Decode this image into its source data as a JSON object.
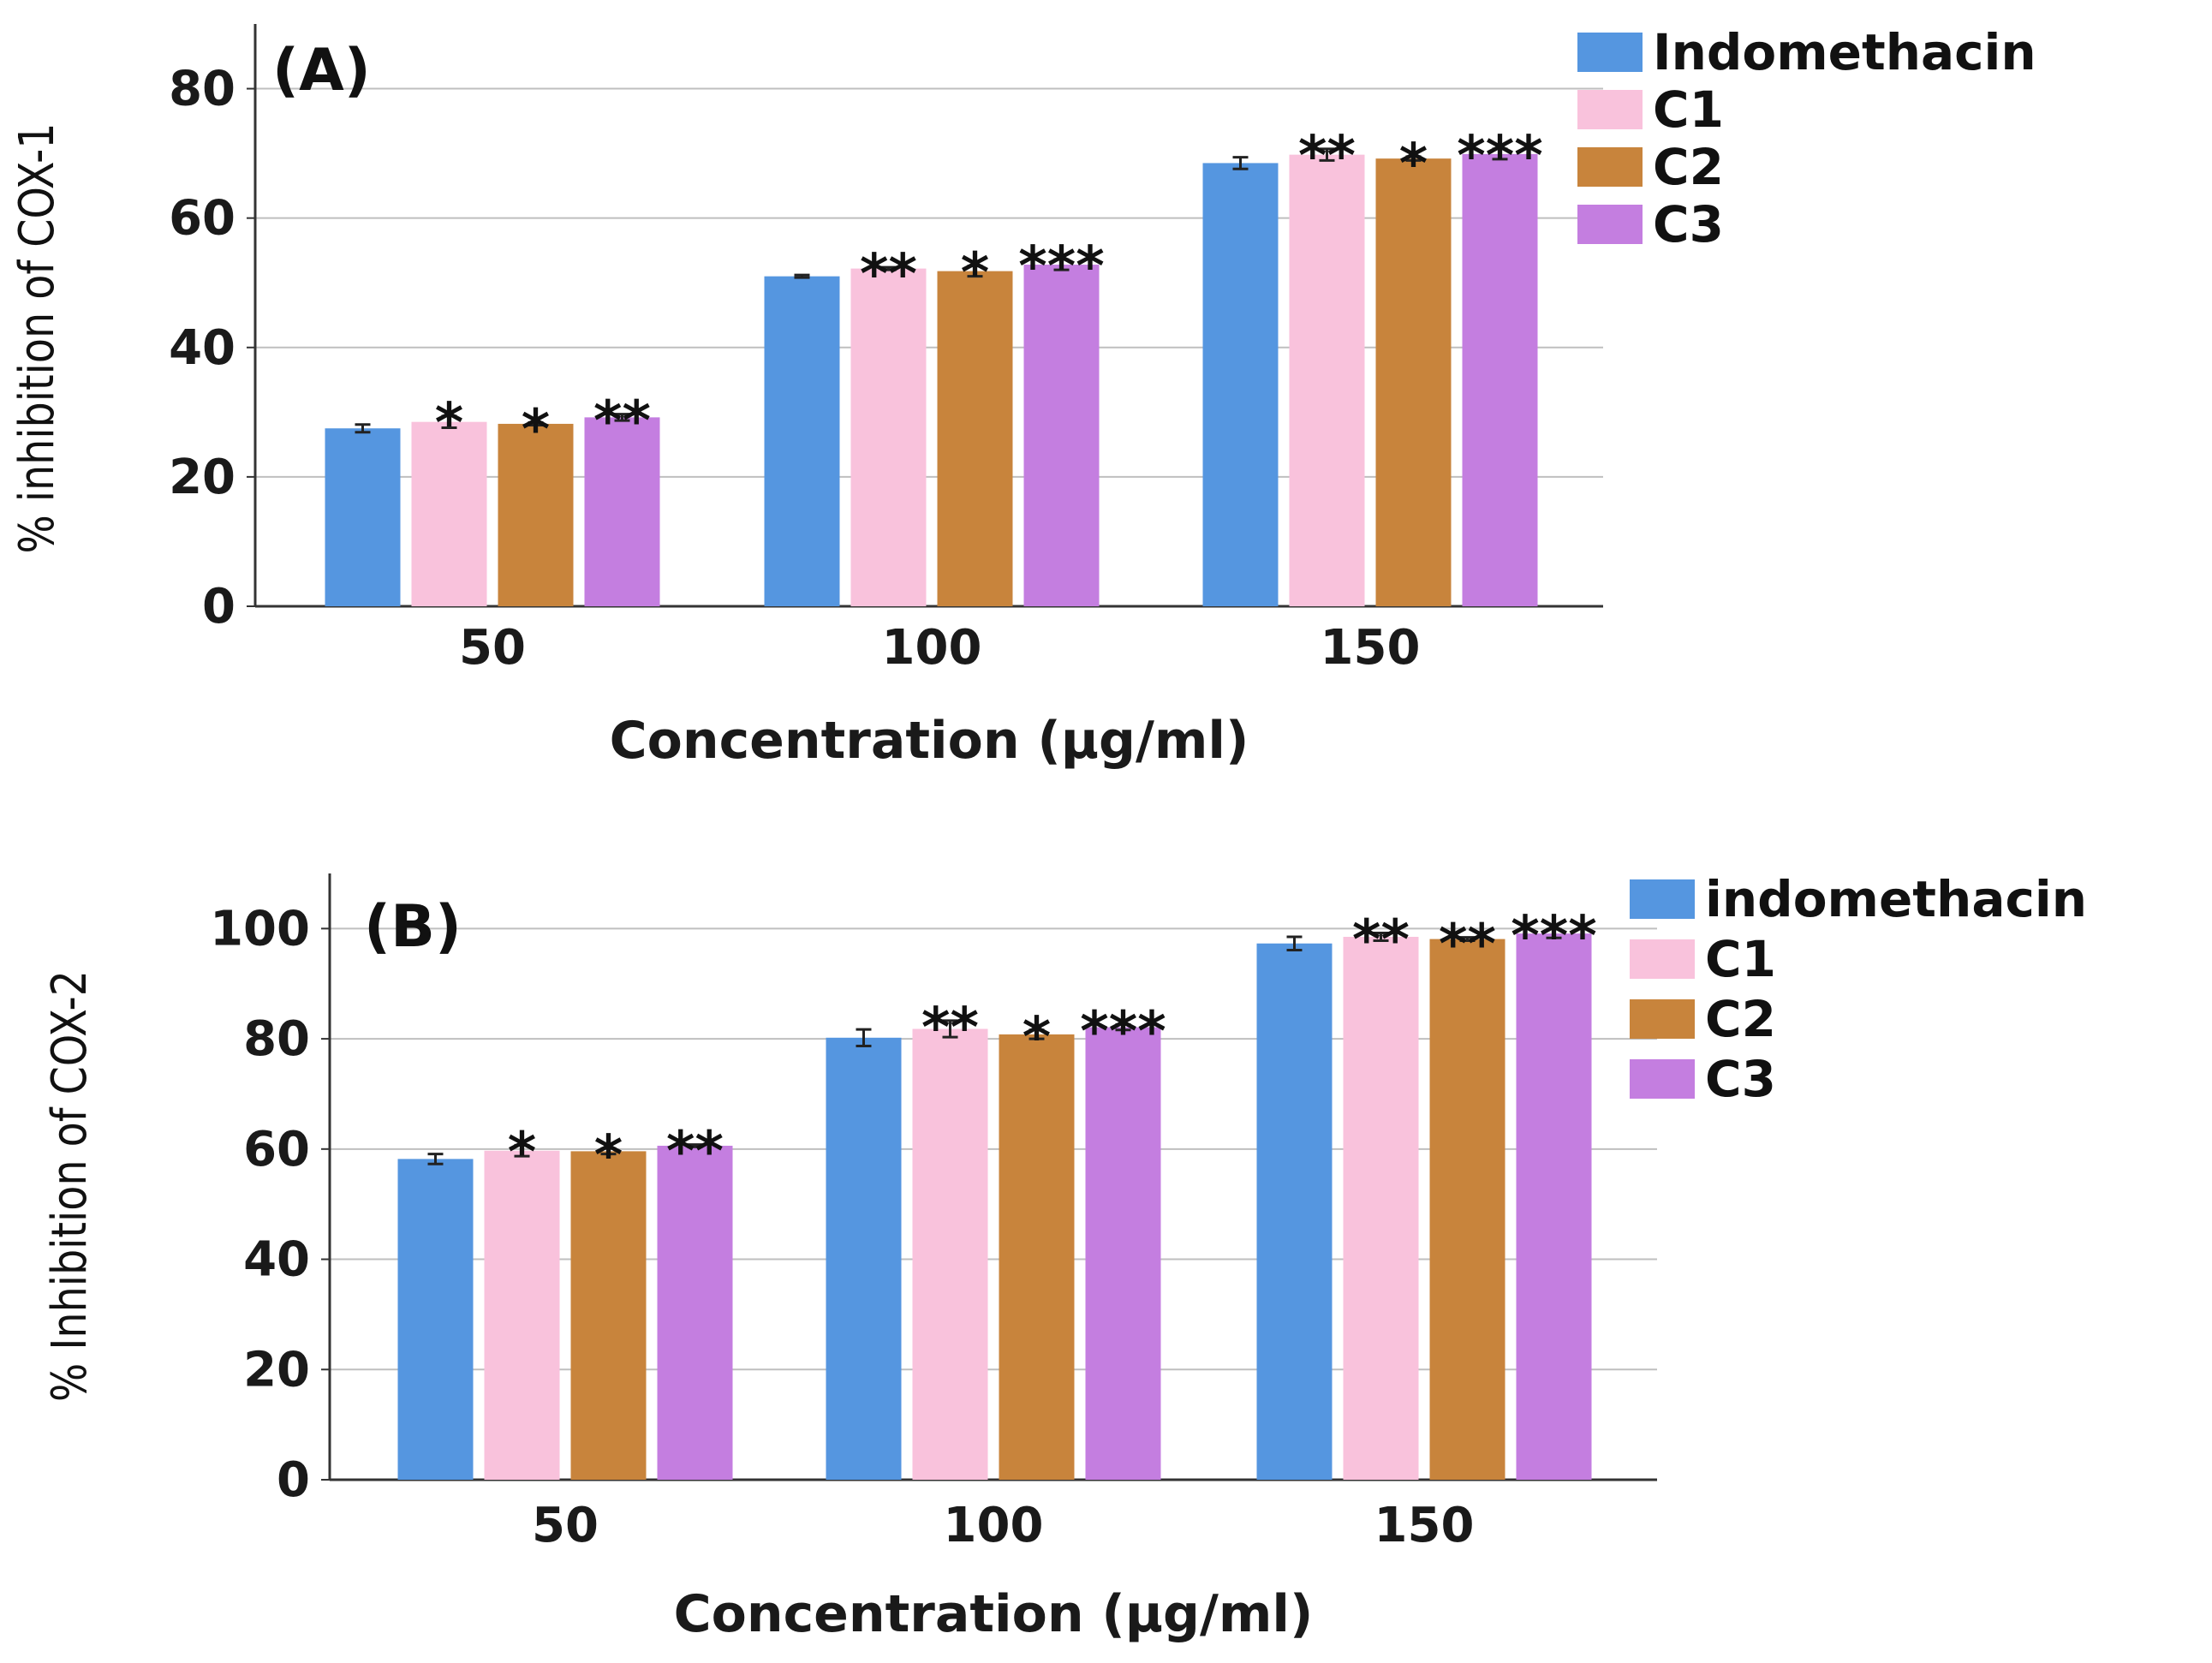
{
  "chart_data": [
    {
      "type": "bar",
      "panel_label": "(A)",
      "categories": [
        "50",
        "100",
        "150"
      ],
      "series": [
        {
          "name": "Indomethacin",
          "color": "#5596e0",
          "values": [
            27.5,
            51.0,
            68.5
          ],
          "errors": [
            0.6,
            0.2,
            0.9
          ],
          "significance": [
            "",
            "",
            ""
          ]
        },
        {
          "name": "C1",
          "color": "#f9c2dc",
          "values": [
            28.5,
            52.2,
            69.8
          ],
          "errors": [
            0.9,
            0.2,
            0.9
          ],
          "significance": [
            "*",
            "**",
            "**"
          ]
        },
        {
          "name": "C2",
          "color": "#c8843c",
          "values": [
            28.2,
            51.8,
            69.2
          ],
          "errors": [
            0.2,
            0.8,
            0.3
          ],
          "significance": [
            "*",
            "*",
            "*"
          ]
        },
        {
          "name": "C3",
          "color": "#c47ee0",
          "values": [
            29.2,
            52.8,
            69.9
          ],
          "errors": [
            0.5,
            0.8,
            0.8
          ],
          "significance": [
            "**",
            "***",
            "***"
          ]
        }
      ],
      "title": "",
      "xlabel": "Concentration (μg/ml)",
      "ylabel": "% inhibition of COX-1",
      "yticks": [
        "0",
        "20",
        "40",
        "60",
        "80"
      ],
      "ylim": [
        0,
        90
      ],
      "grid": true,
      "legend_position": "top-right"
    },
    {
      "type": "bar",
      "panel_label": "(B)",
      "categories": [
        "50",
        "100",
        "150"
      ],
      "series": [
        {
          "name": "indomethacin",
          "color": "#5596e0",
          "values": [
            58.2,
            80.2,
            97.3
          ],
          "errors": [
            0.9,
            1.5,
            1.2
          ],
          "significance": [
            "",
            "",
            ""
          ]
        },
        {
          "name": "C1",
          "color": "#f9c2dc",
          "values": [
            59.7,
            81.8,
            98.5
          ],
          "errors": [
            1.0,
            1.5,
            0.7
          ],
          "significance": [
            "*",
            "**",
            "**"
          ]
        },
        {
          "name": "C2",
          "color": "#c8843c",
          "values": [
            59.6,
            80.8,
            98.1
          ],
          "errors": [
            0.5,
            0.8,
            0.3
          ],
          "significance": [
            "*",
            "*",
            "**"
          ]
        },
        {
          "name": "C3",
          "color": "#c47ee0",
          "values": [
            60.6,
            82.1,
            99.1
          ],
          "errors": [
            0.2,
            0.5,
            0.8
          ],
          "significance": [
            "**",
            "***",
            "***"
          ]
        }
      ],
      "title": "",
      "xlabel": "Concentration (μg/ml)",
      "ylabel": "% Inhibition of COX-2",
      "yticks": [
        "0",
        "20",
        "40",
        "60",
        "80",
        "100"
      ],
      "ylim": [
        0,
        110
      ],
      "grid": true,
      "legend_position": "top-right"
    }
  ]
}
